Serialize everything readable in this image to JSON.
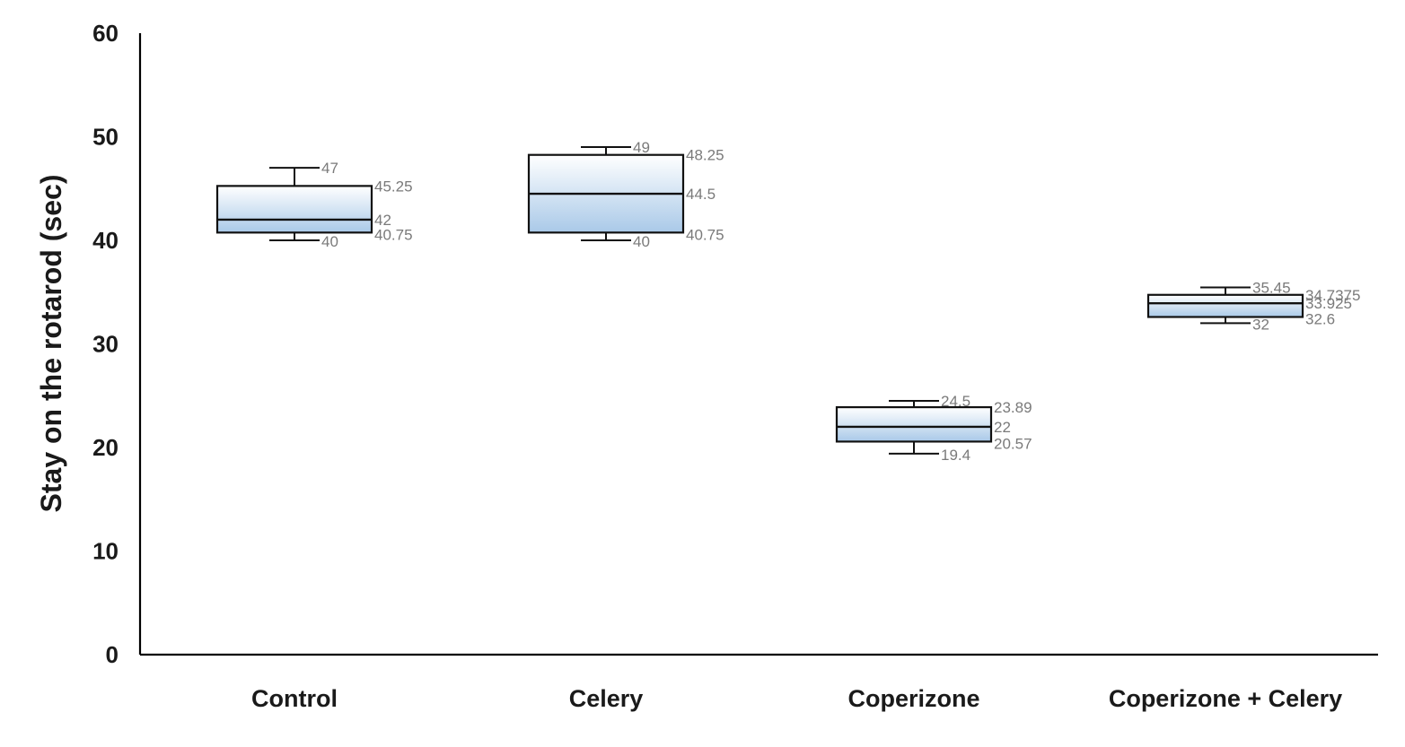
{
  "chart_data": {
    "type": "box",
    "ylabel": "Stay on the rotarod (sec)",
    "xlabel": "",
    "ylim": [
      0,
      60
    ],
    "yticks": [
      0,
      10,
      20,
      30,
      40,
      50,
      60
    ],
    "grid": false,
    "categories": [
      "Control",
      "Celery",
      "Coperizone",
      "Coperizone + Celery"
    ],
    "boxes": [
      {
        "category": "Control",
        "min": 40,
        "q1": 40.75,
        "median": 42,
        "q3": 45.25,
        "max": 47,
        "labels": {
          "max": "47",
          "q3": "45.25",
          "median": "42",
          "q1": "40.75",
          "min": "40"
        }
      },
      {
        "category": "Celery",
        "min": 40,
        "q1": 40.75,
        "median": 44.5,
        "q3": 48.25,
        "max": 49,
        "labels": {
          "max": "49",
          "q3": "48.25",
          "median": "44.5",
          "q1": "40.75",
          "min": "40"
        }
      },
      {
        "category": "Coperizone",
        "min": 19.4,
        "q1": 20.57,
        "median": 22,
        "q3": 23.89,
        "max": 24.5,
        "labels": {
          "max": "24.5",
          "q3": "23.89",
          "median": "22",
          "q1": "20.57",
          "min": "19.4"
        }
      },
      {
        "category": "Coperizone + Celery",
        "min": 32,
        "q1": 32.6,
        "median": 33.925,
        "q3": 34.7375,
        "max": 35.45,
        "labels": {
          "max": "35.45",
          "q3": "34.7375",
          "median": "33.925",
          "q1": "32.6",
          "min": "32"
        }
      }
    ],
    "colors": {
      "box_top": "#ffffff",
      "box_bottom": "#a9c9e8",
      "outline": "#111111",
      "data_label": "#7a7a7a"
    }
  }
}
